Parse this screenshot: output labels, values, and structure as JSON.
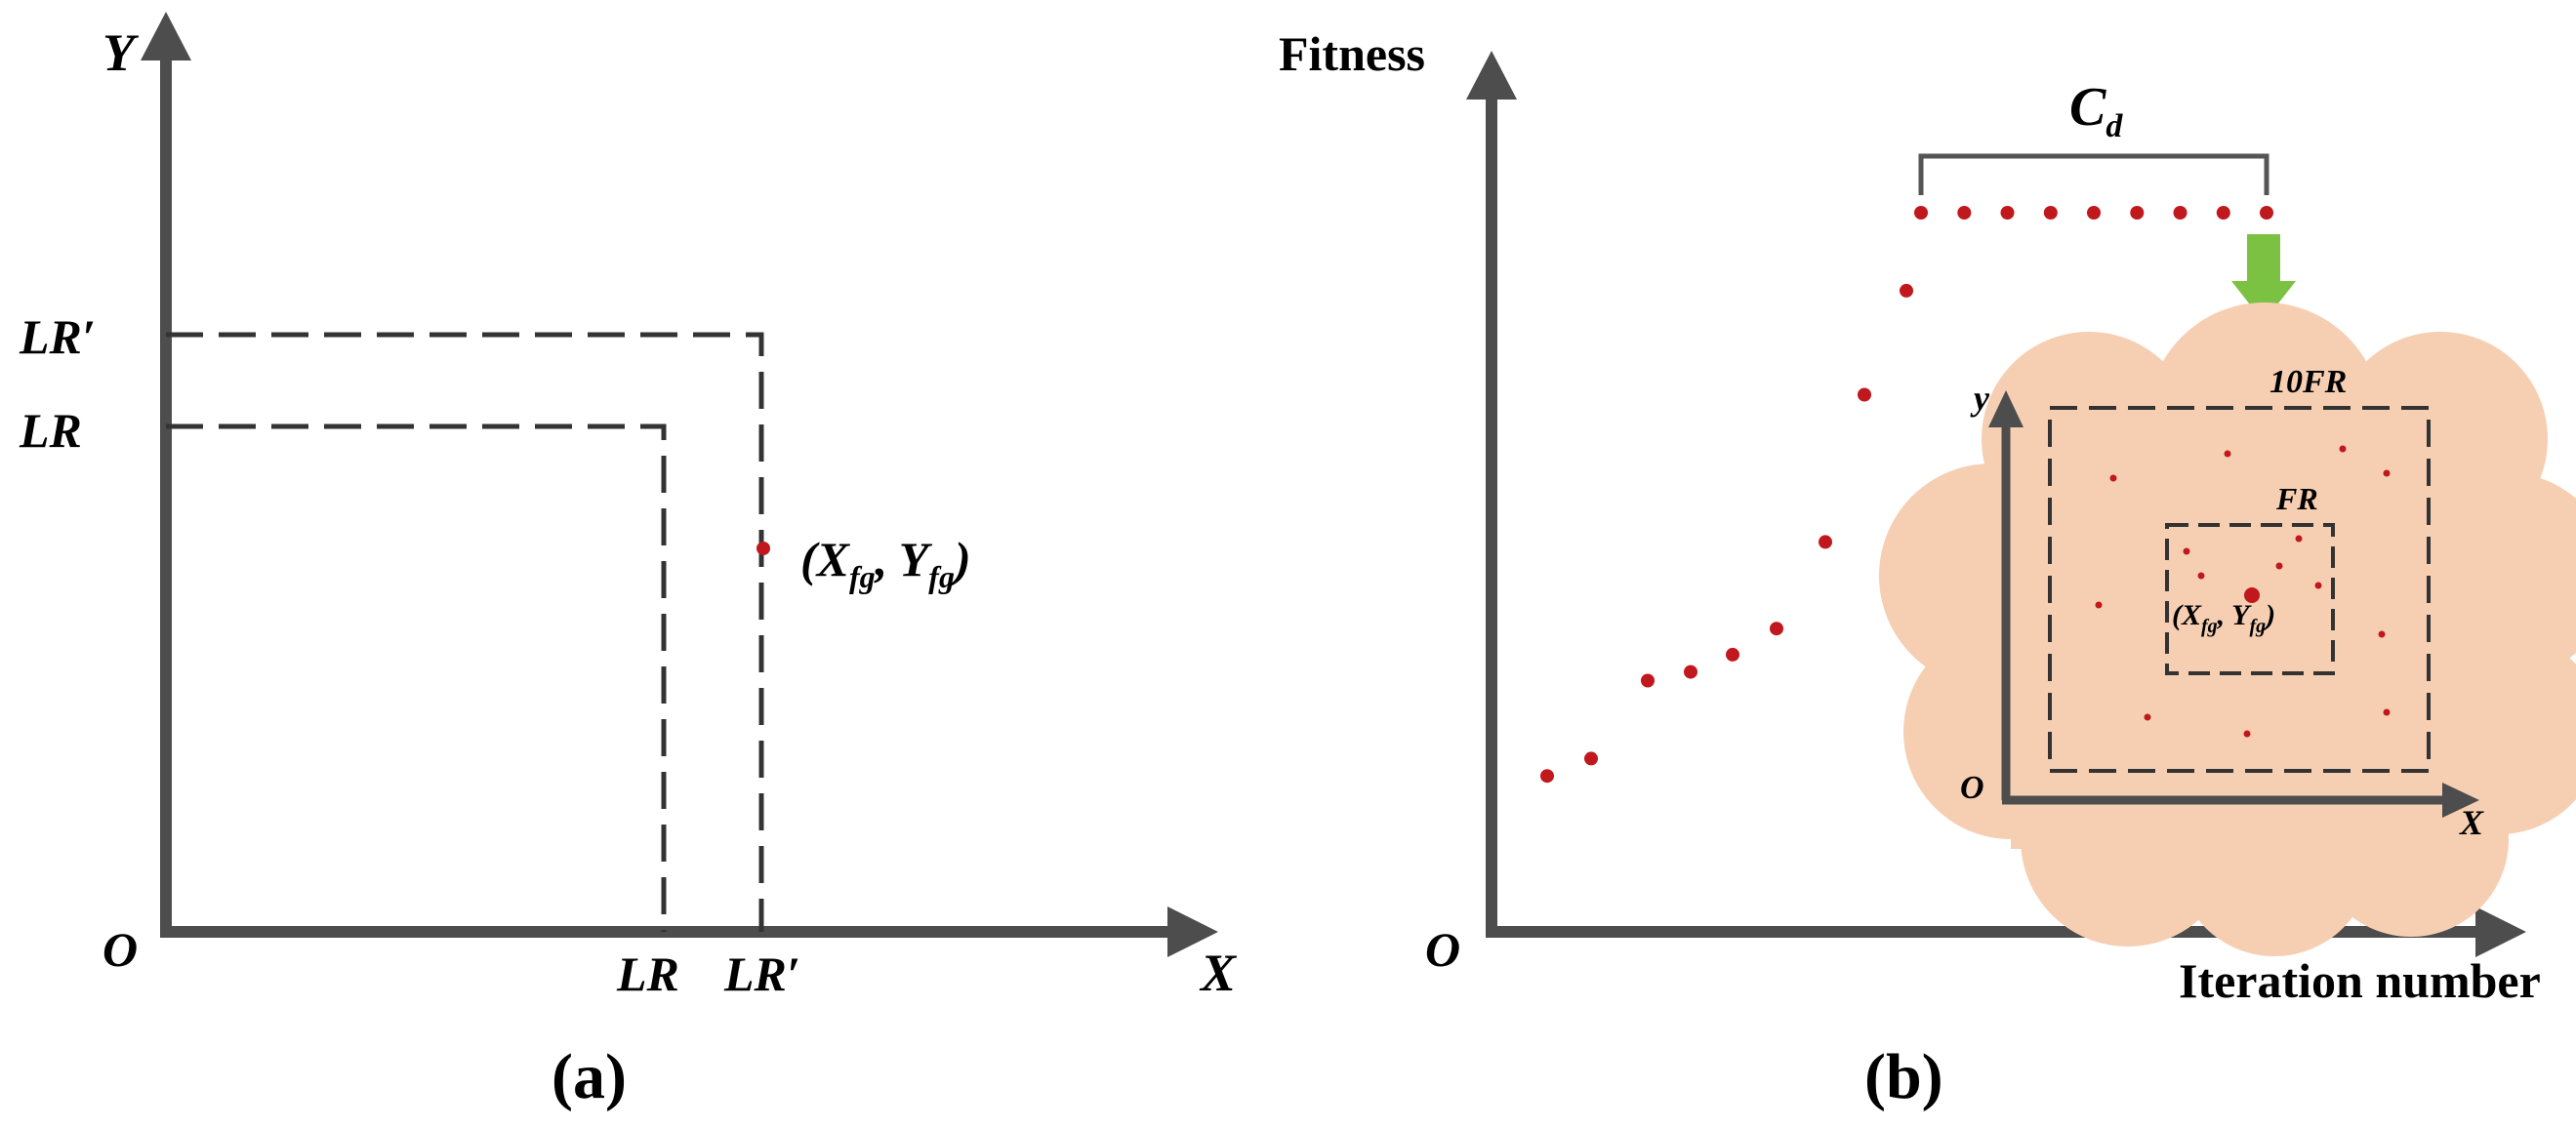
{
  "panel_a": {
    "caption": "(a)",
    "y_axis_label": "Y",
    "x_axis_label": "X",
    "origin_label": "O",
    "y_tick_lr": "LR",
    "y_tick_lr_prime": "LR′",
    "x_tick_lr": "LR",
    "x_tick_lr_prime": "LR′",
    "point": {
      "label_main": "(X",
      "label_sub1": "fg",
      "label_mid": ", Y",
      "label_sub2": "fg",
      "label_end": ")"
    }
  },
  "panel_b": {
    "caption": "(b)",
    "y_axis_label": "Fitness",
    "x_axis_label": "Iteration number",
    "origin_label": "O",
    "bracket_label": "C",
    "bracket_sub": "d",
    "inset": {
      "outer_box_label": "10FR",
      "inner_box_label": "FR",
      "y_axis_label": "y",
      "x_axis_label": "X",
      "origin_label": "O",
      "point": {
        "label_main": "(X",
        "label_sub1": "fg",
        "label_mid": ", Y",
        "label_sub2": "fg",
        "label_end": ")"
      }
    },
    "fitness_points": [
      {
        "iteration": 1,
        "fitness": 0.18
      },
      {
        "iteration": 2,
        "fitness": 0.2
      },
      {
        "iteration": 3,
        "fitness": 0.29
      },
      {
        "iteration": 4,
        "fitness": 0.3
      },
      {
        "iteration": 5,
        "fitness": 0.32
      },
      {
        "iteration": 6,
        "fitness": 0.35
      },
      {
        "iteration": 7,
        "fitness": 0.45
      },
      {
        "iteration": 8,
        "fitness": 0.62
      },
      {
        "iteration": 9,
        "fitness": 0.74
      },
      {
        "iteration": 10,
        "fitness": 0.83
      },
      {
        "iteration": 11,
        "fitness": 0.83
      },
      {
        "iteration": 12,
        "fitness": 0.83
      },
      {
        "iteration": 13,
        "fitness": 0.83
      },
      {
        "iteration": 14,
        "fitness": 0.83
      },
      {
        "iteration": 15,
        "fitness": 0.83
      },
      {
        "iteration": 16,
        "fitness": 0.83
      },
      {
        "iteration": 17,
        "fitness": 0.83
      },
      {
        "iteration": 18,
        "fitness": 0.83
      }
    ],
    "colors": {
      "axis": "#4d4d4d",
      "point": "#c0181c",
      "cloud": "#f6cfb3",
      "arrow": "#7cc242"
    }
  }
}
